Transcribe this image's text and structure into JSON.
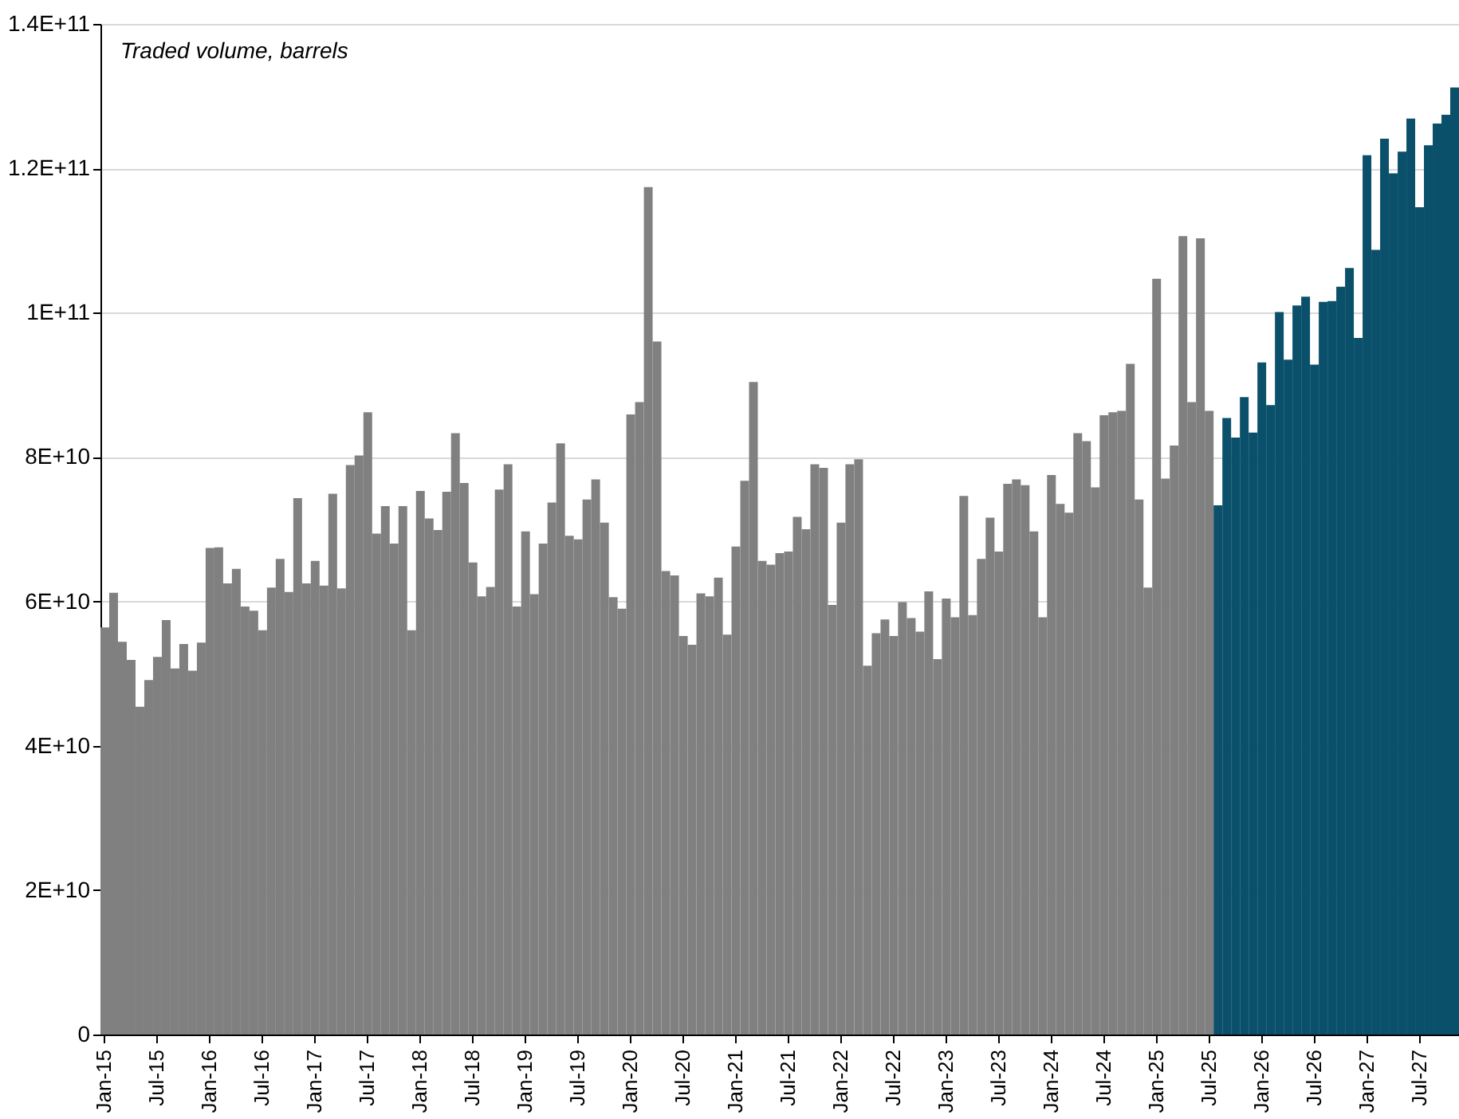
{
  "chart_data": {
    "type": "bar",
    "ylabel": "Traded volume, barrels",
    "categories": [
      "Jan-15",
      null,
      null,
      null,
      null,
      null,
      "Jul-15",
      null,
      null,
      null,
      null,
      null,
      "Jan-16",
      null,
      null,
      null,
      null,
      null,
      "Jul-16",
      null,
      null,
      null,
      null,
      null,
      "Jan-17",
      null,
      null,
      null,
      null,
      null,
      "Jul-17",
      null,
      null,
      null,
      null,
      null,
      "Jan-18",
      null,
      null,
      null,
      null,
      null,
      "Jul-18",
      null,
      null,
      null,
      null,
      null,
      "Jan-19",
      null,
      null,
      null,
      null,
      null,
      "Jul-19",
      null,
      null,
      null,
      null,
      null,
      "Jan-20",
      null,
      null,
      null,
      null,
      null,
      "Jul-20",
      null,
      null,
      null,
      null,
      null,
      "Jan-21",
      null,
      null,
      null,
      null,
      null,
      "Jul-21",
      null,
      null,
      null,
      null,
      null,
      "Jan-22",
      null,
      null,
      null,
      null,
      null,
      "Jul-22",
      null,
      null,
      null,
      null,
      null,
      "Jan-23",
      null,
      null,
      null,
      null,
      null,
      "Jul-23",
      null,
      null,
      null,
      null,
      null,
      "Jan-24",
      null,
      null,
      null,
      null,
      null,
      "Jul-24",
      null,
      null,
      null,
      null,
      null,
      "Jan-25",
      null,
      null,
      null,
      null,
      null,
      "Jul-25",
      null,
      null,
      null,
      null,
      null,
      "Jan-26",
      null,
      null,
      null,
      null,
      null,
      "Jul-26",
      null,
      null,
      null,
      null,
      null,
      "Jan-27",
      null,
      null,
      null,
      null,
      null,
      "Jul-27",
      null,
      null,
      null,
      null
    ],
    "series": [
      {
        "color": "#808080",
        "values": [
          56400000000.0,
          61200000000.0,
          54400000000.0,
          51900000000.0,
          45400000000.0,
          49100000000.0,
          52300000000.0,
          57400000000.0,
          50700000000.0,
          54100000000.0,
          50400000000.0,
          54300000000.0,
          67400000000.0,
          67500000000.0,
          62500000000.0,
          64500000000.0,
          59300000000.0,
          58700000000.0,
          56000000000.0,
          61900000000.0,
          65900000000.0,
          61300000000.0,
          74300000000.0,
          62500000000.0,
          65600000000.0,
          62200000000.0,
          74900000000.0,
          61800000000.0,
          78900000000.0,
          80200000000.0,
          86200000000.0,
          69400000000.0,
          73200000000.0,
          68000000000.0,
          73200000000.0,
          56000000000.0,
          75300000000.0,
          71500000000.0,
          69900000000.0,
          75200000000.0,
          83300000000.0,
          76400000000.0,
          65400000000.0,
          60700000000.0,
          62000000000.0,
          75500000000.0,
          79000000000.0,
          59300000000.0,
          69700000000.0,
          61000000000.0,
          68000000000.0,
          73700000000.0,
          81900000000.0,
          69100000000.0,
          68600000000.0,
          74100000000.0,
          76900000000.0,
          70900000000.0,
          60600000000.0,
          59000000000.0,
          85900000000.0,
          87600000000.0,
          117400000000.0,
          96000000000.0,
          64200000000.0,
          63600000000.0,
          55200000000.0,
          54000000000.0,
          61100000000.0,
          60700000000.0,
          63300000000.0,
          55400000000.0,
          67600000000.0,
          76700000000.0,
          90400000000.0,
          65600000000.0,
          65100000000.0,
          66700000000.0,
          66900000000.0,
          71700000000.0,
          70000000000.0,
          79000000000.0,
          78500000000.0,
          59500000000.0,
          70900000000.0,
          79000000000.0,
          79700000000.0,
          51100000000.0,
          55600000000.0,
          57500000000.0,
          55200000000.0,
          59900000000.0,
          57700000000.0,
          55800000000.0,
          61400000000.0,
          52000000000.0,
          60400000000.0,
          57800000000.0,
          74600000000.0,
          58100000000.0,
          65900000000.0,
          71600000000.0,
          66900000000.0,
          76300000000.0,
          76900000000.0,
          76100000000.0,
          69700000000.0,
          57800000000.0,
          77500000000.0,
          73500000000.0,
          72300000000.0,
          83300000000.0,
          82200000000.0,
          75800000000.0,
          85800000000.0,
          86200000000.0,
          86400000000.0,
          92900000000.0,
          74100000000.0,
          61900000000.0,
          104700000000.0,
          77000000000.0,
          81600000000.0,
          110600000000.0,
          87600000000.0,
          110300000000.0,
          86400000000.0,
          null,
          null,
          null,
          null,
          null,
          null,
          null,
          null,
          null,
          null,
          null,
          null,
          null,
          null,
          null,
          null,
          null,
          null,
          null,
          null,
          null,
          null,
          null,
          null,
          null,
          null,
          null,
          null
        ]
      },
      {
        "color": "#0b506b",
        "values": [
          null,
          null,
          null,
          null,
          null,
          null,
          null,
          null,
          null,
          null,
          null,
          null,
          null,
          null,
          null,
          null,
          null,
          null,
          null,
          null,
          null,
          null,
          null,
          null,
          null,
          null,
          null,
          null,
          null,
          null,
          null,
          null,
          null,
          null,
          null,
          null,
          null,
          null,
          null,
          null,
          null,
          null,
          null,
          null,
          null,
          null,
          null,
          null,
          null,
          null,
          null,
          null,
          null,
          null,
          null,
          null,
          null,
          null,
          null,
          null,
          null,
          null,
          null,
          null,
          null,
          null,
          null,
          null,
          null,
          null,
          null,
          null,
          null,
          null,
          null,
          null,
          null,
          null,
          null,
          null,
          null,
          null,
          null,
          null,
          null,
          null,
          null,
          null,
          null,
          null,
          null,
          null,
          null,
          null,
          null,
          null,
          null,
          null,
          null,
          null,
          null,
          null,
          null,
          null,
          null,
          null,
          null,
          null,
          null,
          null,
          null,
          null,
          null,
          null,
          null,
          null,
          null,
          null,
          null,
          null,
          null,
          null,
          null,
          null,
          null,
          null,
          null,
          73300000000.0,
          85400000000.0,
          82700000000.0,
          88300000000.0,
          83400000000.0,
          93100000000.0,
          87200000000.0,
          100100000000.0,
          93500000000.0,
          101000000000.0,
          102200000000.0,
          92800000000.0,
          101500000000.0,
          101600000000.0,
          103600000000.0,
          106200000000.0,
          96500000000.0,
          121800000000.0,
          108700000000.0,
          124100000000.0,
          119300000000.0,
          122300000000.0,
          126900000000.0,
          114600000000.0,
          123200000000.0,
          126200000000.0,
          127400000000.0,
          131200000000.0
        ]
      }
    ],
    "ylim": [
      0,
      140000000000.0
    ],
    "yticks": [
      0,
      {
        "value": 20000000000.0,
        "label": "2E+10"
      },
      {
        "value": 40000000000.0,
        "label": "4E+10"
      },
      {
        "value": 60000000000.0,
        "label": "6E+10"
      },
      {
        "value": 80000000000.0,
        "label": "8E+10"
      },
      {
        "value": 100000000000.0,
        "label": "1E+11"
      },
      {
        "value": 120000000000.0,
        "label": "1.2E+11"
      },
      {
        "value": 140000000000.0,
        "label": "1.4E+11"
      }
    ],
    "grid": "y",
    "legend": false
  }
}
